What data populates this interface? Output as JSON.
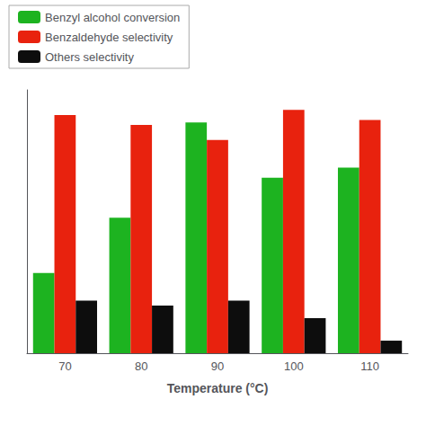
{
  "chart_data": {
    "type": "bar",
    "xlabel": "Temperature (°C)",
    "categories": [
      70,
      80,
      90,
      100,
      110
    ],
    "series": [
      {
        "name": "Benzyl alcohol conversion",
        "color": "#1db320",
        "values": [
          32,
          54,
          92,
          70,
          74
        ]
      },
      {
        "name": "Benzaldehyde selectivity",
        "color": "#e8220e",
        "values": [
          95,
          91,
          85,
          97,
          93
        ]
      },
      {
        "name": "Others selectivity",
        "color": "#0d0d0d",
        "values": [
          21,
          19,
          21,
          14,
          5
        ]
      }
    ],
    "ylim": [
      0,
      105
    ],
    "tick_labels": "x",
    "grid": false,
    "legend": "upper left"
  }
}
